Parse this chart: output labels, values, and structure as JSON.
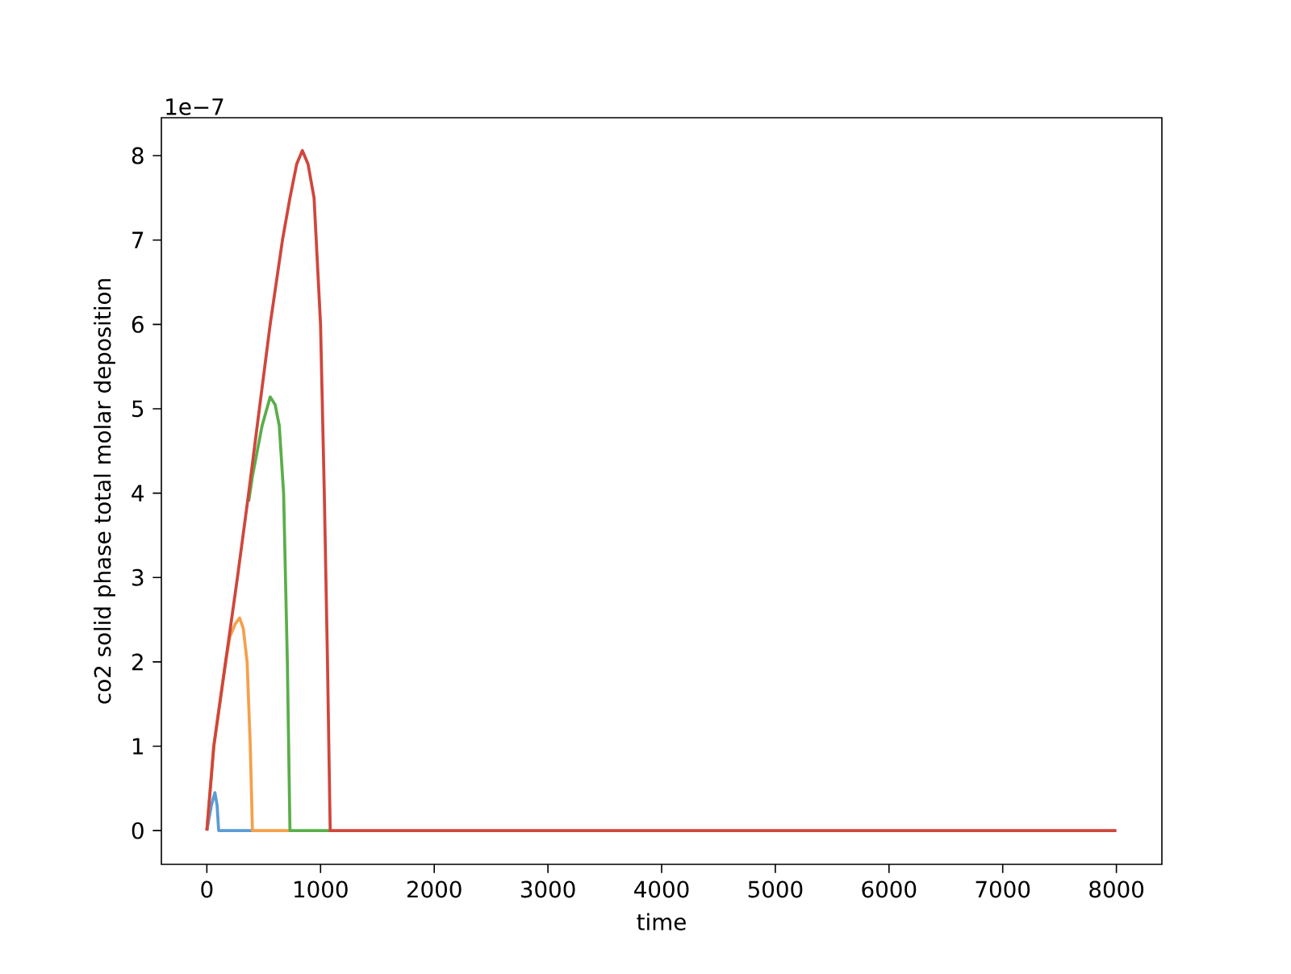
{
  "chart_data": {
    "type": "line",
    "xlabel": "time",
    "ylabel": "co2 solid phase total molar deposition",
    "annotations": [
      "1e−7"
    ],
    "xlim": [
      -400,
      8400
    ],
    "ylim": [
      -0.4,
      8.45
    ],
    "xticks": [
      0,
      1000,
      2000,
      3000,
      4000,
      5000,
      6000,
      7000,
      8000
    ],
    "yticks": [
      0,
      1,
      2,
      3,
      4,
      5,
      6,
      7,
      8
    ],
    "series": [
      {
        "color": "#5b9bd5",
        "x": [
          0,
          40,
          71,
          90,
          104,
          400
        ],
        "values": [
          0,
          0.3,
          0.45,
          0.3,
          0,
          0
        ]
      },
      {
        "color": "#f5a04a",
        "x": [
          0,
          61,
          165,
          203,
          250,
          288,
          320,
          354,
          382,
          401,
          731
        ],
        "values": [
          0,
          1,
          2,
          2.3,
          2.45,
          2.52,
          2.4,
          2,
          1,
          0,
          0
        ]
      },
      {
        "color": "#5aae4a",
        "x": [
          368,
          401,
          486,
          557,
          600,
          637,
          675,
          708,
          731,
          1085
        ],
        "values": [
          3.9,
          4.2,
          4.8,
          5.14,
          5.05,
          4.8,
          4,
          2,
          0,
          0
        ]
      },
      {
        "color": "#d0463b",
        "x": [
          0,
          61,
          165,
          269,
          368,
          462,
          557,
          665,
          731,
          790,
          840,
          890,
          943,
          1000,
          1033,
          1061,
          1085,
          8000
        ],
        "values": [
          0,
          1,
          2,
          3,
          4,
          5,
          6,
          7,
          7.5,
          7.9,
          8.06,
          7.9,
          7.5,
          6,
          4,
          2,
          0,
          0
        ]
      }
    ]
  }
}
